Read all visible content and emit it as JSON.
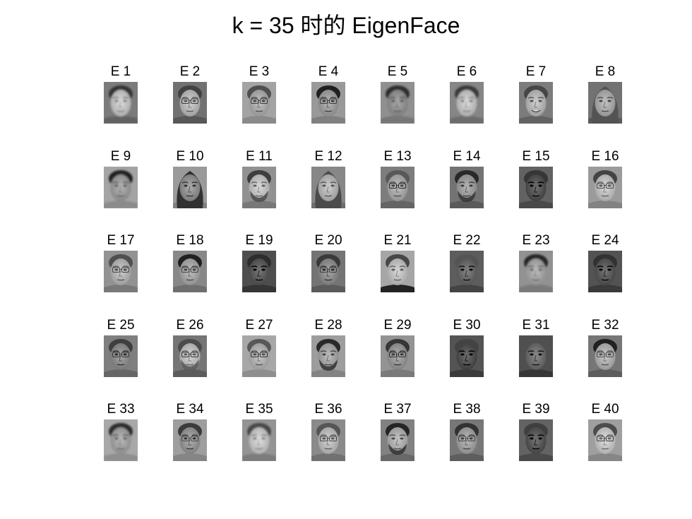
{
  "title": "k = 35 时的 EigenFace",
  "grid": {
    "rows": 5,
    "cols": 8
  },
  "eigenfaces": [
    {
      "label": "E 1",
      "features": [
        "blurred-face"
      ]
    },
    {
      "label": "E 2",
      "features": [
        "glasses"
      ]
    },
    {
      "label": "E 3",
      "features": [
        "glasses"
      ]
    },
    {
      "label": "E 4",
      "features": [
        "glasses"
      ]
    },
    {
      "label": "E 5",
      "features": [
        "blurred-face"
      ]
    },
    {
      "label": "E 6",
      "features": [
        "blurred-face"
      ]
    },
    {
      "label": "E 7",
      "features": [
        "smile"
      ]
    },
    {
      "label": "E 8",
      "features": [
        "long-hair"
      ]
    },
    {
      "label": "E 9",
      "features": [
        "blurred-face"
      ]
    },
    {
      "label": "E 10",
      "features": [
        "long-hair"
      ]
    },
    {
      "label": "E 11",
      "features": [
        "beard"
      ]
    },
    {
      "label": "E 12",
      "features": [
        "long-hair"
      ]
    },
    {
      "label": "E 13",
      "features": [
        "glasses"
      ]
    },
    {
      "label": "E 14",
      "features": [
        "beard"
      ]
    },
    {
      "label": "E 15",
      "features": [
        "dark-face"
      ]
    },
    {
      "label": "E 16",
      "features": [
        "glasses"
      ]
    },
    {
      "label": "E 17",
      "features": [
        "glasses"
      ]
    },
    {
      "label": "E 18",
      "features": [
        "glasses"
      ]
    },
    {
      "label": "E 19",
      "features": [
        "dark-face"
      ]
    },
    {
      "label": "E 20",
      "features": [
        "glasses"
      ]
    },
    {
      "label": "E 21",
      "features": [
        "suit"
      ]
    },
    {
      "label": "E 22",
      "features": [
        "dark-face"
      ]
    },
    {
      "label": "E 23",
      "features": [
        "blurred-face"
      ]
    },
    {
      "label": "E 24",
      "features": [
        "dark-face"
      ]
    },
    {
      "label": "E 25",
      "features": [
        "glasses"
      ]
    },
    {
      "label": "E 26",
      "features": [
        "glasses",
        "beard"
      ]
    },
    {
      "label": "E 27",
      "features": [
        "glasses"
      ]
    },
    {
      "label": "E 28",
      "features": [
        "beard"
      ]
    },
    {
      "label": "E 29",
      "features": [
        "glasses"
      ]
    },
    {
      "label": "E 30",
      "features": [
        "dark-face"
      ]
    },
    {
      "label": "E 31",
      "features": [
        "dark-face"
      ]
    },
    {
      "label": "E 32",
      "features": [
        "glasses"
      ]
    },
    {
      "label": "E 33",
      "features": [
        "blurred-face"
      ]
    },
    {
      "label": "E 34",
      "features": [
        "glasses"
      ]
    },
    {
      "label": "E 35",
      "features": [
        "blurred-face"
      ]
    },
    {
      "label": "E 36",
      "features": [
        "glasses"
      ]
    },
    {
      "label": "E 37",
      "features": [
        "beard"
      ]
    },
    {
      "label": "E 38",
      "features": [
        "glasses"
      ]
    },
    {
      "label": "E 39",
      "features": [
        "dark-face"
      ]
    },
    {
      "label": "E 40",
      "features": [
        "glasses"
      ]
    }
  ]
}
